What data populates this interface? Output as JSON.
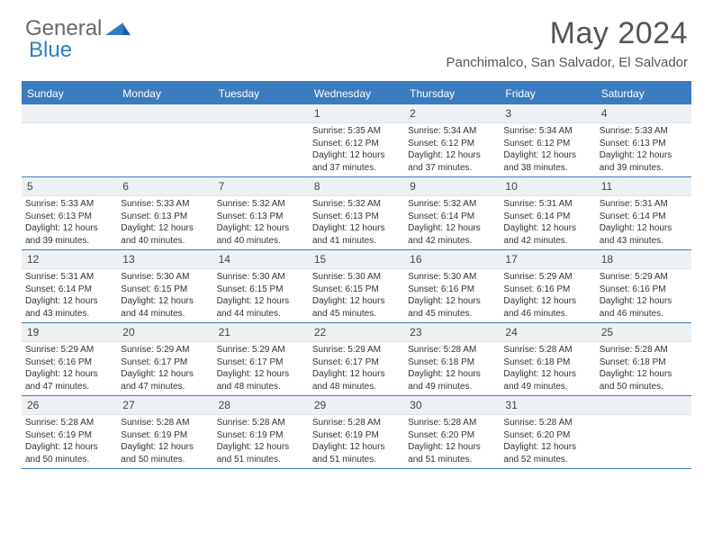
{
  "logo": {
    "text1": "General",
    "text2": "Blue"
  },
  "title": "May 2024",
  "location": "Panchimalco, San Salvador, El Salvador",
  "colors": {
    "header_bg": "#3b7bbf",
    "daynum_bg": "#eef1f3",
    "border": "#3b7bbf",
    "logo_gray": "#6a6a6a",
    "logo_blue": "#2f7dc4"
  },
  "dayNames": [
    "Sunday",
    "Monday",
    "Tuesday",
    "Wednesday",
    "Thursday",
    "Friday",
    "Saturday"
  ],
  "weeks": [
    [
      {
        "day": "",
        "sunrise": "",
        "sunset": "",
        "daylight1": "",
        "daylight2": ""
      },
      {
        "day": "",
        "sunrise": "",
        "sunset": "",
        "daylight1": "",
        "daylight2": ""
      },
      {
        "day": "",
        "sunrise": "",
        "sunset": "",
        "daylight1": "",
        "daylight2": ""
      },
      {
        "day": "1",
        "sunrise": "Sunrise: 5:35 AM",
        "sunset": "Sunset: 6:12 PM",
        "daylight1": "Daylight: 12 hours",
        "daylight2": "and 37 minutes."
      },
      {
        "day": "2",
        "sunrise": "Sunrise: 5:34 AM",
        "sunset": "Sunset: 6:12 PM",
        "daylight1": "Daylight: 12 hours",
        "daylight2": "and 37 minutes."
      },
      {
        "day": "3",
        "sunrise": "Sunrise: 5:34 AM",
        "sunset": "Sunset: 6:12 PM",
        "daylight1": "Daylight: 12 hours",
        "daylight2": "and 38 minutes."
      },
      {
        "day": "4",
        "sunrise": "Sunrise: 5:33 AM",
        "sunset": "Sunset: 6:13 PM",
        "daylight1": "Daylight: 12 hours",
        "daylight2": "and 39 minutes."
      }
    ],
    [
      {
        "day": "5",
        "sunrise": "Sunrise: 5:33 AM",
        "sunset": "Sunset: 6:13 PM",
        "daylight1": "Daylight: 12 hours",
        "daylight2": "and 39 minutes."
      },
      {
        "day": "6",
        "sunrise": "Sunrise: 5:33 AM",
        "sunset": "Sunset: 6:13 PM",
        "daylight1": "Daylight: 12 hours",
        "daylight2": "and 40 minutes."
      },
      {
        "day": "7",
        "sunrise": "Sunrise: 5:32 AM",
        "sunset": "Sunset: 6:13 PM",
        "daylight1": "Daylight: 12 hours",
        "daylight2": "and 40 minutes."
      },
      {
        "day": "8",
        "sunrise": "Sunrise: 5:32 AM",
        "sunset": "Sunset: 6:13 PM",
        "daylight1": "Daylight: 12 hours",
        "daylight2": "and 41 minutes."
      },
      {
        "day": "9",
        "sunrise": "Sunrise: 5:32 AM",
        "sunset": "Sunset: 6:14 PM",
        "daylight1": "Daylight: 12 hours",
        "daylight2": "and 42 minutes."
      },
      {
        "day": "10",
        "sunrise": "Sunrise: 5:31 AM",
        "sunset": "Sunset: 6:14 PM",
        "daylight1": "Daylight: 12 hours",
        "daylight2": "and 42 minutes."
      },
      {
        "day": "11",
        "sunrise": "Sunrise: 5:31 AM",
        "sunset": "Sunset: 6:14 PM",
        "daylight1": "Daylight: 12 hours",
        "daylight2": "and 43 minutes."
      }
    ],
    [
      {
        "day": "12",
        "sunrise": "Sunrise: 5:31 AM",
        "sunset": "Sunset: 6:14 PM",
        "daylight1": "Daylight: 12 hours",
        "daylight2": "and 43 minutes."
      },
      {
        "day": "13",
        "sunrise": "Sunrise: 5:30 AM",
        "sunset": "Sunset: 6:15 PM",
        "daylight1": "Daylight: 12 hours",
        "daylight2": "and 44 minutes."
      },
      {
        "day": "14",
        "sunrise": "Sunrise: 5:30 AM",
        "sunset": "Sunset: 6:15 PM",
        "daylight1": "Daylight: 12 hours",
        "daylight2": "and 44 minutes."
      },
      {
        "day": "15",
        "sunrise": "Sunrise: 5:30 AM",
        "sunset": "Sunset: 6:15 PM",
        "daylight1": "Daylight: 12 hours",
        "daylight2": "and 45 minutes."
      },
      {
        "day": "16",
        "sunrise": "Sunrise: 5:30 AM",
        "sunset": "Sunset: 6:16 PM",
        "daylight1": "Daylight: 12 hours",
        "daylight2": "and 45 minutes."
      },
      {
        "day": "17",
        "sunrise": "Sunrise: 5:29 AM",
        "sunset": "Sunset: 6:16 PM",
        "daylight1": "Daylight: 12 hours",
        "daylight2": "and 46 minutes."
      },
      {
        "day": "18",
        "sunrise": "Sunrise: 5:29 AM",
        "sunset": "Sunset: 6:16 PM",
        "daylight1": "Daylight: 12 hours",
        "daylight2": "and 46 minutes."
      }
    ],
    [
      {
        "day": "19",
        "sunrise": "Sunrise: 5:29 AM",
        "sunset": "Sunset: 6:16 PM",
        "daylight1": "Daylight: 12 hours",
        "daylight2": "and 47 minutes."
      },
      {
        "day": "20",
        "sunrise": "Sunrise: 5:29 AM",
        "sunset": "Sunset: 6:17 PM",
        "daylight1": "Daylight: 12 hours",
        "daylight2": "and 47 minutes."
      },
      {
        "day": "21",
        "sunrise": "Sunrise: 5:29 AM",
        "sunset": "Sunset: 6:17 PM",
        "daylight1": "Daylight: 12 hours",
        "daylight2": "and 48 minutes."
      },
      {
        "day": "22",
        "sunrise": "Sunrise: 5:29 AM",
        "sunset": "Sunset: 6:17 PM",
        "daylight1": "Daylight: 12 hours",
        "daylight2": "and 48 minutes."
      },
      {
        "day": "23",
        "sunrise": "Sunrise: 5:28 AM",
        "sunset": "Sunset: 6:18 PM",
        "daylight1": "Daylight: 12 hours",
        "daylight2": "and 49 minutes."
      },
      {
        "day": "24",
        "sunrise": "Sunrise: 5:28 AM",
        "sunset": "Sunset: 6:18 PM",
        "daylight1": "Daylight: 12 hours",
        "daylight2": "and 49 minutes."
      },
      {
        "day": "25",
        "sunrise": "Sunrise: 5:28 AM",
        "sunset": "Sunset: 6:18 PM",
        "daylight1": "Daylight: 12 hours",
        "daylight2": "and 50 minutes."
      }
    ],
    [
      {
        "day": "26",
        "sunrise": "Sunrise: 5:28 AM",
        "sunset": "Sunset: 6:19 PM",
        "daylight1": "Daylight: 12 hours",
        "daylight2": "and 50 minutes."
      },
      {
        "day": "27",
        "sunrise": "Sunrise: 5:28 AM",
        "sunset": "Sunset: 6:19 PM",
        "daylight1": "Daylight: 12 hours",
        "daylight2": "and 50 minutes."
      },
      {
        "day": "28",
        "sunrise": "Sunrise: 5:28 AM",
        "sunset": "Sunset: 6:19 PM",
        "daylight1": "Daylight: 12 hours",
        "daylight2": "and 51 minutes."
      },
      {
        "day": "29",
        "sunrise": "Sunrise: 5:28 AM",
        "sunset": "Sunset: 6:19 PM",
        "daylight1": "Daylight: 12 hours",
        "daylight2": "and 51 minutes."
      },
      {
        "day": "30",
        "sunrise": "Sunrise: 5:28 AM",
        "sunset": "Sunset: 6:20 PM",
        "daylight1": "Daylight: 12 hours",
        "daylight2": "and 51 minutes."
      },
      {
        "day": "31",
        "sunrise": "Sunrise: 5:28 AM",
        "sunset": "Sunset: 6:20 PM",
        "daylight1": "Daylight: 12 hours",
        "daylight2": "and 52 minutes."
      },
      {
        "day": "",
        "sunrise": "",
        "sunset": "",
        "daylight1": "",
        "daylight2": ""
      }
    ]
  ]
}
